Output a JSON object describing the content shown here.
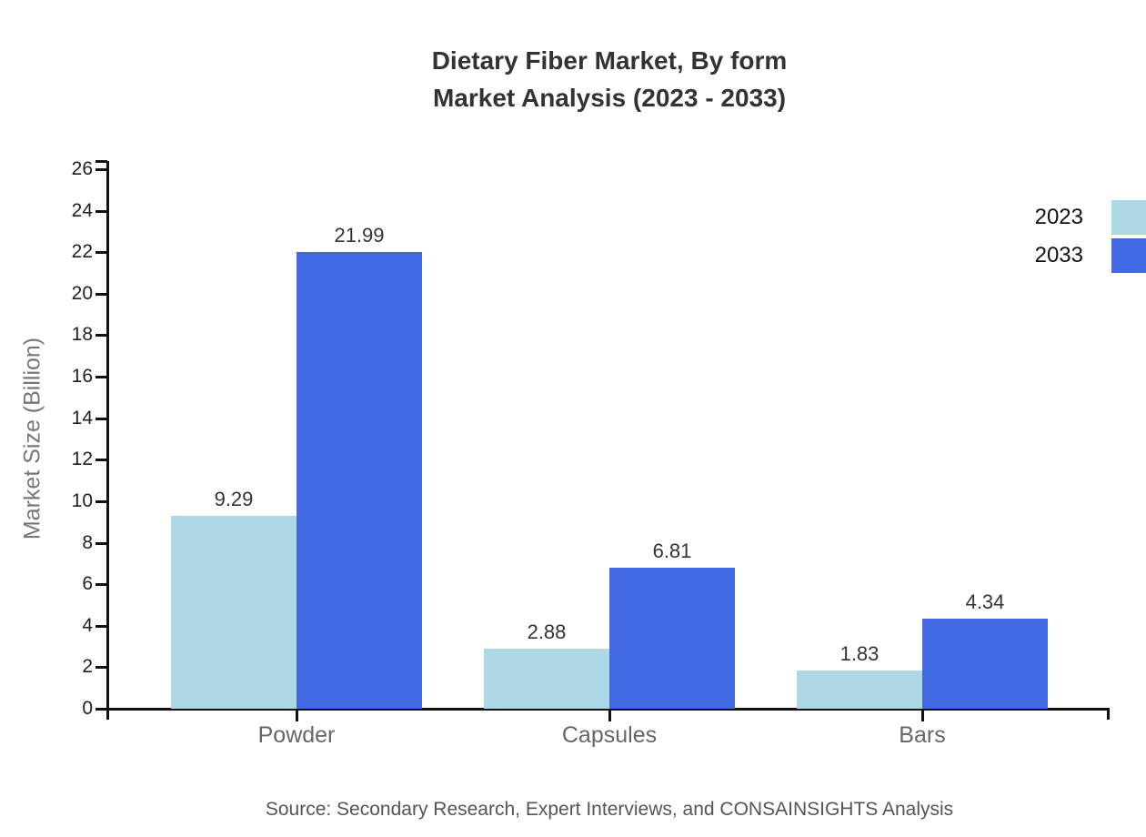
{
  "title": {
    "line1": "Dietary Fiber Market, By form",
    "line2": "Market Analysis (2023 - 2033)"
  },
  "source": "Source: Secondary Research, Expert Interviews, and CONSAINSIGHTS Analysis",
  "chart_data": {
    "type": "bar",
    "title": "Dietary Fiber Market, By form Market Analysis (2023 - 2033)",
    "categories": [
      "Powder",
      "Capsules",
      "Bars"
    ],
    "series": [
      {
        "name": "2023",
        "color": "#add8e6",
        "values": [
          9.29,
          2.88,
          1.83
        ]
      },
      {
        "name": "2033",
        "color": "#4169e1",
        "values": [
          21.99,
          6.81,
          4.34
        ]
      }
    ],
    "value_labels": [
      "9.29",
      "21.99",
      "2.88",
      "6.81",
      "1.83",
      "4.34"
    ],
    "xlabel": "",
    "ylabel": "Market Size (Billion)",
    "ylim": [
      0,
      26
    ],
    "yticks": [
      0,
      2,
      4,
      6,
      8,
      10,
      12,
      14,
      16,
      18,
      20,
      22,
      24,
      26
    ],
    "grid": false,
    "legend_position": "top-right",
    "legend_entries": [
      "2023",
      "2033"
    ]
  },
  "colors": {
    "series_2023": "#add8e6",
    "series_2033": "#4169e1",
    "axis": "#111111",
    "title_text": "#333333",
    "tick_text": "#222222",
    "y_axis_title_text": "#777777",
    "category_text": "#666666",
    "source_text": "#555555",
    "background": "#ffffff"
  }
}
